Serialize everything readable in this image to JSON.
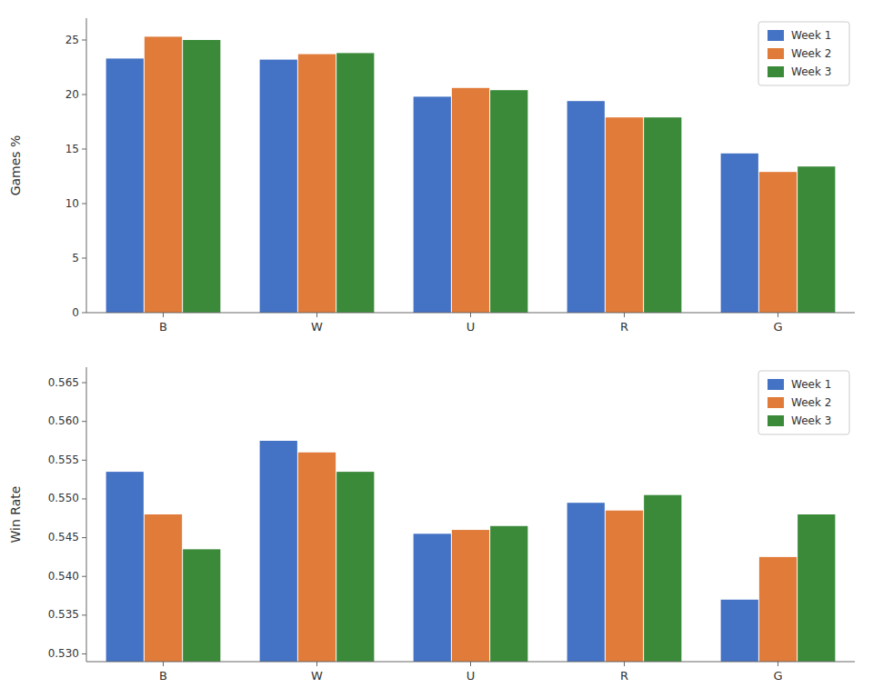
{
  "chart_data": [
    {
      "type": "bar",
      "ylabel": "Games %",
      "categories": [
        "B",
        "W",
        "U",
        "R",
        "G"
      ],
      "series": [
        {
          "name": "Week 1",
          "color": "#4472c4",
          "values": [
            23.3,
            23.2,
            19.8,
            19.4,
            14.6
          ]
        },
        {
          "name": "Week 2",
          "color": "#e07b39",
          "values": [
            25.3,
            23.7,
            20.6,
            17.9,
            12.9
          ]
        },
        {
          "name": "Week 3",
          "color": "#3a8a3a",
          "values": [
            25.0,
            23.8,
            20.4,
            17.9,
            13.4
          ]
        }
      ],
      "ylim": [
        0,
        27
      ],
      "yticks": [
        0,
        5,
        10,
        15,
        20,
        25
      ],
      "grid": false,
      "legend": "upper right"
    },
    {
      "type": "bar",
      "ylabel": "Win Rate",
      "categories": [
        "B",
        "W",
        "U",
        "R",
        "G"
      ],
      "series": [
        {
          "name": "Week 1",
          "color": "#4472c4",
          "values": [
            0.5535,
            0.5575,
            0.5455,
            0.5495,
            0.537
          ]
        },
        {
          "name": "Week 2",
          "color": "#e07b39",
          "values": [
            0.548,
            0.556,
            0.546,
            0.5485,
            0.5425
          ]
        },
        {
          "name": "Week 3",
          "color": "#3a8a3a",
          "values": [
            0.5435,
            0.5535,
            0.5465,
            0.5505,
            0.548
          ]
        }
      ],
      "ylim": [
        0.529,
        0.567
      ],
      "yticks": [
        {
          "value": 0.53,
          "label": "0.530"
        },
        0.535,
        {
          "value": 0.54,
          "label": "0.540"
        },
        0.545,
        {
          "value": 0.55,
          "label": "0.550"
        },
        0.555,
        {
          "value": 0.56,
          "label": "0.560"
        },
        0.565
      ],
      "grid": false,
      "legend": "upper right"
    }
  ]
}
